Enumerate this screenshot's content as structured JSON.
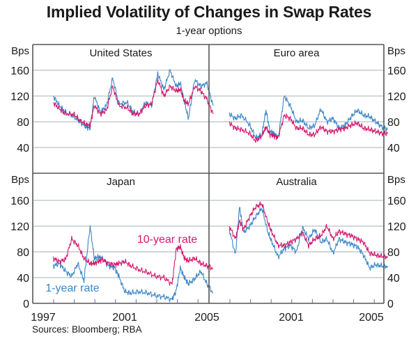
{
  "title": "Implied Volatility of Changes in Swap Rates",
  "subtitle": "1-year options",
  "source": "Sources: Bloomberg; RBA",
  "colors": {
    "ten_year": "#d4186c",
    "one_year": "#3a86c8",
    "grid": "#b8c0c4",
    "frame": "#555555"
  },
  "chart_data": {
    "type": "line",
    "title": "Implied Volatility of Changes in Swap Rates",
    "subtitle": "1-year options",
    "ylabel": "Bps",
    "ylim": [
      0,
      160
    ],
    "yticks": [
      0,
      40,
      80,
      120,
      160
    ],
    "x_tick_labels": [
      "1997",
      "2001",
      "2005",
      "2001",
      "2005"
    ],
    "xlim": [
      1996.0,
      2004.6
    ],
    "grid": true,
    "legend": [
      {
        "name": "10-year rate",
        "panel": "Japan"
      },
      {
        "name": "1-year rate",
        "panel": "Japan"
      }
    ],
    "panels": [
      {
        "name": "United States",
        "series": [
          {
            "name": "1-year rate",
            "x": [
              1997.0,
              1997.3,
              1997.6,
              1998.0,
              1998.3,
              1998.6,
              1998.8,
              1999.0,
              1999.3,
              1999.6,
              1999.9,
              2000.2,
              2000.6,
              2000.9,
              2001.2,
              2001.5,
              2001.8,
              2002.1,
              2002.4,
              2002.7,
              2003.0,
              2003.2,
              2003.4,
              2003.6,
              2003.9,
              2004.2,
              2004.5,
              2004.8
            ],
            "values": [
              120,
              105,
              95,
              88,
              80,
              72,
              70,
              120,
              95,
              105,
              148,
              108,
              110,
              95,
              92,
              110,
              105,
              155,
              130,
              160,
              135,
              140,
              110,
              85,
              145,
              135,
              140,
              105
            ]
          },
          {
            "name": "10-year rate",
            "x": [
              1997.0,
              1997.3,
              1997.6,
              1998.0,
              1998.3,
              1998.6,
              1998.8,
              1999.0,
              1999.3,
              1999.6,
              1999.9,
              2000.2,
              2000.6,
              2000.9,
              2001.2,
              2001.5,
              2001.8,
              2002.1,
              2002.4,
              2002.7,
              2003.0,
              2003.2,
              2003.4,
              2003.6,
              2003.9,
              2004.2,
              2004.5,
              2004.8
            ],
            "values": [
              110,
              100,
              92,
              92,
              82,
              76,
              74,
              105,
              92,
              98,
              135,
              105,
              102,
              92,
              92,
              105,
              108,
              145,
              120,
              135,
              128,
              130,
              112,
              108,
              135,
              128,
              115,
              92
            ]
          }
        ]
      },
      {
        "name": "Euro area",
        "series": [
          {
            "name": "1-year rate",
            "x": [
              1997.0,
              1997.3,
              1997.6,
              1998.0,
              1998.3,
              1998.6,
              1998.8,
              1999.0,
              1999.2,
              1999.4,
              1999.7,
              2000.0,
              2000.3,
              2000.6,
              2000.9,
              2001.2,
              2001.5,
              2001.8,
              2002.1,
              2002.4,
              2002.7,
              2003.0,
              2003.3,
              2003.6,
              2003.9,
              2004.2,
              2004.5,
              2004.8
            ],
            "values": [
              92,
              85,
              90,
              75,
              55,
              60,
              98,
              65,
              62,
              55,
              120,
              105,
              80,
              82,
              70,
              74,
              100,
              80,
              85,
              70,
              75,
              88,
              98,
              90,
              88,
              80,
              72,
              68
            ]
          },
          {
            "name": "10-year rate",
            "x": [
              1997.0,
              1997.3,
              1997.6,
              1998.0,
              1998.3,
              1998.6,
              1998.8,
              1999.0,
              1999.2,
              1999.4,
              1999.7,
              2000.0,
              2000.3,
              2000.6,
              2000.9,
              2001.2,
              2001.5,
              2001.8,
              2002.1,
              2002.4,
              2002.7,
              2003.0,
              2003.3,
              2003.6,
              2003.9,
              2004.2,
              2004.5,
              2004.8
            ],
            "values": [
              78,
              70,
              68,
              62,
              50,
              58,
              72,
              60,
              58,
              55,
              90,
              85,
              70,
              70,
              60,
              60,
              72,
              65,
              65,
              68,
              70,
              75,
              78,
              70,
              68,
              65,
              62,
              62
            ]
          }
        ]
      },
      {
        "name": "Japan",
        "series": [
          {
            "name": "1-year rate",
            "x": [
              1997.0,
              1997.3,
              1997.6,
              1997.9,
              1998.2,
              1998.5,
              1998.8,
              1999.0,
              1999.2,
              1999.4,
              1999.7,
              2000.0,
              2000.2,
              2000.5,
              2000.8,
              2001.2,
              2001.6,
              2002.0,
              2002.4,
              2002.8,
              2003.0,
              2003.2,
              2003.4,
              2003.6,
              2003.9,
              2004.2,
              2004.5,
              2004.8
            ],
            "values": [
              58,
              62,
              50,
              42,
              62,
              35,
              120,
              70,
              72,
              70,
              58,
              55,
              42,
              18,
              16,
              18,
              16,
              12,
              10,
              6,
              20,
              55,
              40,
              30,
              38,
              50,
              30,
              16
            ]
          },
          {
            "name": "10-year rate",
            "x": [
              1997.0,
              1997.3,
              1997.6,
              1997.9,
              1998.2,
              1998.5,
              1998.8,
              1999.0,
              1999.2,
              1999.4,
              1999.7,
              2000.0,
              2000.2,
              2000.5,
              2000.8,
              2001.2,
              2001.6,
              2002.0,
              2002.4,
              2002.8,
              2003.0,
              2003.2,
              2003.4,
              2003.6,
              2003.9,
              2004.2,
              2004.5,
              2004.8
            ],
            "values": [
              70,
              65,
              68,
              100,
              90,
              70,
              62,
              62,
              65,
              68,
              62,
              60,
              62,
              65,
              58,
              52,
              48,
              42,
              40,
              30,
              84,
              88,
              70,
              66,
              70,
              62,
              58,
              54
            ]
          }
        ]
      },
      {
        "name": "Australia",
        "series": [
          {
            "name": "1-year rate",
            "x": [
              1997.0,
              1997.3,
              1997.5,
              1997.7,
              1998.0,
              1998.3,
              1998.6,
              1998.9,
              1999.1,
              1999.4,
              1999.7,
              2000.0,
              2000.3,
              2000.6,
              2000.9,
              2001.2,
              2001.5,
              2001.8,
              2002.1,
              2002.4,
              2002.7,
              2003.0,
              2003.3,
              2003.6,
              2003.9,
              2004.2,
              2004.5,
              2004.8
            ],
            "values": [
              115,
              75,
              150,
              110,
              120,
              135,
              148,
              110,
              95,
              72,
              85,
              90,
              80,
              118,
              100,
              115,
              95,
              100,
              78,
              100,
              95,
              92,
              88,
              75,
              55,
              60,
              58,
              57
            ]
          },
          {
            "name": "10-year rate",
            "x": [
              1997.0,
              1997.3,
              1997.5,
              1997.7,
              1998.0,
              1998.3,
              1998.6,
              1998.9,
              1999.1,
              1999.4,
              1999.7,
              2000.0,
              2000.3,
              2000.6,
              2000.9,
              2001.2,
              2001.5,
              2001.8,
              2002.1,
              2002.4,
              2002.7,
              2003.0,
              2003.3,
              2003.6,
              2003.9,
              2004.2,
              2004.5,
              2004.8
            ],
            "values": [
              120,
              100,
              128,
              115,
              135,
              150,
              155,
              125,
              110,
              90,
              90,
              95,
              100,
              110,
              90,
              100,
              105,
              120,
              100,
              112,
              108,
              105,
              100,
              95,
              78,
              75,
              73,
              72
            ]
          }
        ]
      }
    ],
    "annotations": [
      "10-year rate",
      "1-year rate"
    ]
  }
}
